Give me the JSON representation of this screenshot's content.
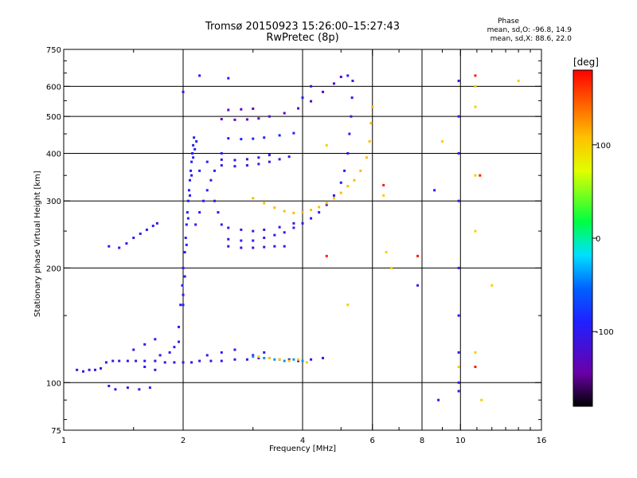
{
  "chart_data": {
    "type": "scatter",
    "title": "Tromsø 20150923 15:26:00–15:27:43",
    "subtitle": "RwPretec (8p)",
    "xlabel": "Frequency [MHz]",
    "ylabel": "Stationary phase Virtual Height [km]",
    "x_scale": "log",
    "y_scale": "log",
    "xlim": [
      1,
      16
    ],
    "ylim": [
      75,
      750
    ],
    "x_ticks": [
      1,
      2,
      4,
      6,
      8,
      10,
      16
    ],
    "y_ticks": [
      75,
      100,
      200,
      300,
      400,
      500,
      600,
      750
    ],
    "vertical_grid": [
      2,
      4,
      6,
      8,
      10
    ],
    "horizontal_grid": [
      100,
      200,
      300,
      400,
      500,
      600
    ],
    "phase_stats": {
      "heading": "Phase",
      "o_mode": "mean, sd,O: -96.8, 14.9",
      "x_mode": "mean, sd,X:  88.6, 22.0"
    },
    "colorbar": {
      "label": "[deg]",
      "ticks": [
        100,
        0,
        -100
      ],
      "range": [
        -180,
        180
      ],
      "colormap": "rainbow"
    },
    "series": [
      {
        "trace": "E-layer",
        "phase": -110,
        "points": [
          [
            1.08,
            108
          ],
          [
            1.12,
            107
          ],
          [
            1.16,
            108
          ],
          [
            1.2,
            108
          ],
          [
            1.24,
            109
          ],
          [
            1.28,
            113
          ],
          [
            1.33,
            114
          ],
          [
            1.38,
            114
          ],
          [
            1.45,
            114
          ],
          [
            1.52,
            114
          ],
          [
            1.6,
            114
          ],
          [
            1.7,
            114
          ],
          [
            1.8,
            113
          ],
          [
            1.9,
            113
          ],
          [
            2.0,
            113
          ],
          [
            2.1,
            113
          ],
          [
            2.2,
            114
          ],
          [
            2.35,
            114
          ],
          [
            2.5,
            114
          ],
          [
            2.7,
            115
          ],
          [
            2.9,
            115
          ],
          [
            3.1,
            116
          ],
          [
            3.3,
            116
          ],
          [
            3.5,
            115
          ],
          [
            3.7,
            115
          ],
          [
            3.9,
            114
          ],
          [
            4.2,
            115
          ],
          [
            4.5,
            116
          ]
        ]
      },
      {
        "trace": "E-layer-scatter",
        "phase": -100,
        "points": [
          [
            1.3,
            98
          ],
          [
            1.35,
            96
          ],
          [
            1.45,
            97
          ],
          [
            1.55,
            96
          ],
          [
            1.65,
            97
          ],
          [
            1.5,
            122
          ],
          [
            1.6,
            126
          ],
          [
            1.7,
            130
          ],
          [
            1.75,
            118
          ],
          [
            1.85,
            120
          ],
          [
            1.9,
            124
          ],
          [
            1.95,
            128
          ],
          [
            2.3,
            118
          ],
          [
            2.5,
            120
          ],
          [
            2.7,
            122
          ],
          [
            3.0,
            118
          ],
          [
            3.2,
            120
          ],
          [
            1.6,
            110
          ],
          [
            1.7,
            108
          ]
        ]
      },
      {
        "trace": "Es-high",
        "phase": -40,
        "points": [
          [
            3.2,
            116
          ],
          [
            3.4,
            115
          ],
          [
            3.6,
            114
          ],
          [
            3.8,
            115
          ],
          [
            4.0,
            114
          ],
          [
            3.0,
            117
          ]
        ]
      },
      {
        "trace": "Es-X",
        "phase": 100,
        "points": [
          [
            3.1,
            117
          ],
          [
            3.3,
            116
          ],
          [
            3.5,
            115
          ],
          [
            3.7,
            114
          ],
          [
            3.9,
            115
          ],
          [
            4.1,
            113
          ]
        ]
      },
      {
        "trace": "spread-F-column",
        "phase": -95,
        "points": [
          [
            1.95,
            140
          ],
          [
            1.97,
            160
          ],
          [
            1.99,
            180
          ],
          [
            2.0,
            200
          ],
          [
            2.02,
            220
          ],
          [
            2.03,
            240
          ],
          [
            2.04,
            260
          ],
          [
            2.05,
            280
          ],
          [
            2.06,
            300
          ],
          [
            2.07,
            320
          ],
          [
            2.08,
            340
          ],
          [
            2.09,
            360
          ],
          [
            2.1,
            380
          ],
          [
            2.11,
            400
          ],
          [
            2.12,
            420
          ],
          [
            2.13,
            440
          ],
          [
            2.02,
            190
          ],
          [
            2.04,
            230
          ],
          [
            2.06,
            270
          ],
          [
            2.08,
            310
          ],
          [
            2.1,
            350
          ],
          [
            2.12,
            390
          ],
          [
            2.14,
            410
          ],
          [
            2.16,
            430
          ],
          [
            2.0,
            160
          ],
          [
            2.0,
            170
          ],
          [
            2.15,
            260
          ],
          [
            2.2,
            280
          ],
          [
            2.25,
            300
          ],
          [
            2.3,
            320
          ],
          [
            2.35,
            340
          ],
          [
            2.4,
            300
          ],
          [
            2.45,
            280
          ],
          [
            2.5,
            260
          ],
          [
            2.3,
            380
          ],
          [
            2.4,
            360
          ],
          [
            2.5,
            400
          ],
          [
            2.2,
            360
          ]
        ]
      },
      {
        "trace": "F-low-trace",
        "phase": -100,
        "points": [
          [
            1.3,
            228
          ],
          [
            1.38,
            226
          ],
          [
            1.44,
            232
          ],
          [
            1.5,
            240
          ],
          [
            1.56,
            246
          ],
          [
            1.62,
            252
          ],
          [
            1.68,
            258
          ],
          [
            1.72,
            262
          ]
        ]
      },
      {
        "trace": "F2-O-trace",
        "phase": -100,
        "points": [
          [
            2.6,
            238
          ],
          [
            2.8,
            236
          ],
          [
            3.0,
            236
          ],
          [
            3.2,
            240
          ],
          [
            3.4,
            244
          ],
          [
            3.6,
            248
          ],
          [
            3.8,
            255
          ],
          [
            4.0,
            262
          ],
          [
            4.2,
            270
          ],
          [
            4.4,
            280
          ],
          [
            4.6,
            293
          ],
          [
            4.8,
            310
          ],
          [
            5.0,
            335
          ],
          [
            5.1,
            360
          ],
          [
            5.2,
            400
          ],
          [
            5.25,
            450
          ],
          [
            5.3,
            500
          ],
          [
            5.33,
            560
          ],
          [
            5.35,
            620
          ]
        ]
      },
      {
        "trace": "F2-X-trace",
        "phase": 110,
        "points": [
          [
            3.0,
            305
          ],
          [
            3.2,
            296
          ],
          [
            3.4,
            288
          ],
          [
            3.6,
            282
          ],
          [
            3.8,
            279
          ],
          [
            4.0,
            280
          ],
          [
            4.2,
            284
          ],
          [
            4.4,
            289
          ],
          [
            4.6,
            296
          ],
          [
            4.8,
            305
          ],
          [
            5.0,
            315
          ],
          [
            5.2,
            328
          ],
          [
            5.4,
            340
          ],
          [
            5.6,
            360
          ],
          [
            5.8,
            390
          ],
          [
            5.9,
            430
          ],
          [
            5.95,
            480
          ],
          [
            6.0,
            530
          ]
        ]
      },
      {
        "trace": "F2-layer-multi",
        "phase": -110,
        "points": [
          [
            2.6,
            255
          ],
          [
            2.8,
            252
          ],
          [
            3.0,
            250
          ],
          [
            3.2,
            252
          ],
          [
            3.5,
            256
          ],
          [
            3.8,
            262
          ],
          [
            2.6,
            228
          ],
          [
            2.8,
            226
          ],
          [
            3.0,
            226
          ],
          [
            3.2,
            227
          ],
          [
            3.4,
            228
          ],
          [
            3.6,
            228
          ]
        ]
      },
      {
        "trace": "multiple-hop-1",
        "phase": -105,
        "points": [
          [
            2.5,
            372
          ],
          [
            2.7,
            370
          ],
          [
            2.9,
            372
          ],
          [
            3.1,
            375
          ],
          [
            3.3,
            380
          ],
          [
            3.5,
            386
          ],
          [
            3.7,
            392
          ],
          [
            2.5,
            385
          ],
          [
            2.7,
            384
          ],
          [
            2.9,
            386
          ],
          [
            3.1,
            390
          ],
          [
            3.3,
            396
          ]
        ]
      },
      {
        "trace": "multiple-hop-2",
        "phase": -90,
        "points": [
          [
            2.6,
            438
          ],
          [
            2.8,
            436
          ],
          [
            3.0,
            437
          ],
          [
            3.2,
            440
          ],
          [
            3.5,
            446
          ],
          [
            3.8,
            452
          ]
        ]
      },
      {
        "trace": "multiple-hop-3",
        "phase": -130,
        "points": [
          [
            2.5,
            492
          ],
          [
            2.7,
            490
          ],
          [
            2.9,
            491
          ],
          [
            3.1,
            494
          ],
          [
            3.3,
            500
          ],
          [
            3.6,
            510
          ],
          [
            3.9,
            525
          ],
          [
            4.2,
            548
          ],
          [
            4.5,
            580
          ],
          [
            4.8,
            610
          ],
          [
            5.0,
            635
          ],
          [
            2.6,
            520
          ],
          [
            2.8,
            522
          ],
          [
            3.0,
            524
          ]
        ]
      },
      {
        "trace": "scattered",
        "phase": -100,
        "points": [
          [
            5.2,
            640
          ],
          [
            4.2,
            600
          ],
          [
            4.0,
            560
          ],
          [
            2.0,
            580
          ],
          [
            2.2,
            640
          ],
          [
            2.6,
            630
          ],
          [
            7.8,
            180
          ],
          [
            9.9,
            620
          ],
          [
            9.9,
            500
          ],
          [
            9.9,
            400
          ],
          [
            9.9,
            300
          ],
          [
            9.9,
            200
          ],
          [
            9.9,
            150
          ],
          [
            9.9,
            120
          ],
          [
            9.9,
            100
          ],
          [
            8.8,
            90
          ],
          [
            9.9,
            95
          ],
          [
            8.6,
            320
          ]
        ]
      },
      {
        "trace": "scattered-positive",
        "phase": 100,
        "points": [
          [
            6.4,
            310
          ],
          [
            6.5,
            220
          ],
          [
            9.0,
            430
          ],
          [
            10.9,
            600
          ],
          [
            10.9,
            530
          ],
          [
            11.3,
            90
          ],
          [
            10.9,
            350
          ],
          [
            10.9,
            250
          ],
          [
            10.9,
            120
          ],
          [
            14.0,
            620
          ],
          [
            12.0,
            180
          ],
          [
            9.9,
            110
          ],
          [
            4.6,
            420
          ],
          [
            5.2,
            160
          ],
          [
            6.7,
            200
          ]
        ]
      },
      {
        "trace": "scattered-red",
        "phase": 170,
        "points": [
          [
            6.4,
            330
          ],
          [
            7.8,
            215
          ],
          [
            10.9,
            640
          ],
          [
            10.9,
            110
          ],
          [
            4.6,
            215
          ],
          [
            11.2,
            350
          ]
        ]
      }
    ]
  }
}
